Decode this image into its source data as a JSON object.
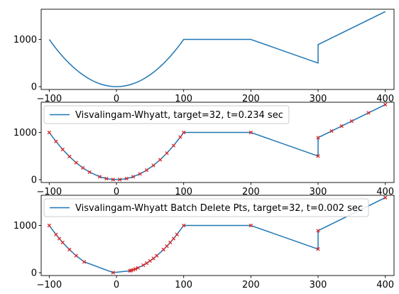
{
  "chart_data": [
    {
      "type": "line",
      "title": "",
      "xlabel": "",
      "ylabel": "",
      "xlim": [
        -112,
        413
      ],
      "ylim": [
        -60,
        1640
      ],
      "xticks": [
        -100,
        0,
        100,
        200,
        300,
        400
      ],
      "yticks": [
        0,
        1000
      ],
      "legend": null,
      "series": [
        {
          "color": "#1f77b4",
          "x": [
            -100,
            -95,
            -90,
            -85,
            -80,
            -75,
            -70,
            -65,
            -60,
            -55,
            -50,
            -45,
            -40,
            -35,
            -30,
            -25,
            -20,
            -15,
            -10,
            -5,
            0,
            5,
            10,
            15,
            20,
            25,
            30,
            35,
            40,
            45,
            50,
            55,
            60,
            65,
            70,
            75,
            80,
            85,
            90,
            95,
            100,
            200,
            300,
            300,
            400
          ],
          "y": [
            1000,
            902.5,
            810,
            722.5,
            640,
            562.5,
            490,
            422.5,
            360,
            302.5,
            250,
            202.5,
            160,
            122.5,
            90,
            62.5,
            40,
            22.5,
            10,
            2.5,
            0,
            2.5,
            10,
            22.5,
            40,
            62.5,
            90,
            122.5,
            160,
            202.5,
            250,
            302.5,
            360,
            422.5,
            490,
            562.5,
            640,
            722.5,
            810,
            902.5,
            1000,
            1000,
            500,
            890,
            1590
          ]
        }
      ]
    },
    {
      "type": "line",
      "title": "",
      "xlabel": "",
      "ylabel": "",
      "xlim": [
        -112,
        413
      ],
      "ylim": [
        -60,
        1640
      ],
      "xticks": [
        -100,
        0,
        100,
        200,
        300,
        400
      ],
      "yticks": [
        0,
        1000
      ],
      "legend": "upper-left",
      "series": [
        {
          "name": "Visvalingam-Whyatt, target=32, t=0.234 sec",
          "color": "#1f77b4",
          "marker_color": "#d62728",
          "x": [
            -100,
            -90,
            -80,
            -70,
            -60,
            -50,
            -40,
            -25,
            -15,
            -5,
            5,
            15,
            25,
            35,
            45,
            55,
            65,
            75,
            85,
            95,
            100,
            200,
            300,
            300,
            320,
            335,
            350,
            375,
            400
          ],
          "y": [
            1000,
            810,
            640,
            490,
            360,
            250,
            160,
            62.5,
            22.5,
            2.5,
            2.5,
            22.5,
            62.5,
            122.5,
            202.5,
            302.5,
            422.5,
            562.5,
            722.5,
            902.5,
            1000,
            1000,
            500,
            890,
            1030,
            1135,
            1240,
            1415,
            1590
          ]
        }
      ]
    },
    {
      "type": "line",
      "title": "",
      "xlabel": "",
      "ylabel": "",
      "xlim": [
        -112,
        413
      ],
      "ylim": [
        -60,
        1640
      ],
      "xticks": [
        -100,
        0,
        100,
        200,
        300,
        400
      ],
      "yticks": [
        0,
        1000
      ],
      "legend": "upper-left",
      "series": [
        {
          "name": "Visvalingam-Whyatt Batch Delete Pts, target=32, t=0.002 sec",
          "color": "#1f77b4",
          "marker_color": "#d62728",
          "x": [
            -100,
            -90,
            -85,
            -80,
            -70,
            -60,
            -48,
            -5,
            20,
            22,
            25,
            28,
            32,
            40,
            45,
            50,
            55,
            60,
            70,
            75,
            80,
            85,
            90,
            100,
            200,
            300,
            300,
            400
          ],
          "y": [
            1000,
            810,
            722.5,
            640,
            490,
            360,
            230,
            2.5,
            40,
            48,
            62.5,
            78,
            102,
            160,
            202.5,
            250,
            302.5,
            360,
            490,
            562.5,
            640,
            722.5,
            810,
            1000,
            1000,
            500,
            890,
            1590
          ]
        }
      ]
    }
  ]
}
